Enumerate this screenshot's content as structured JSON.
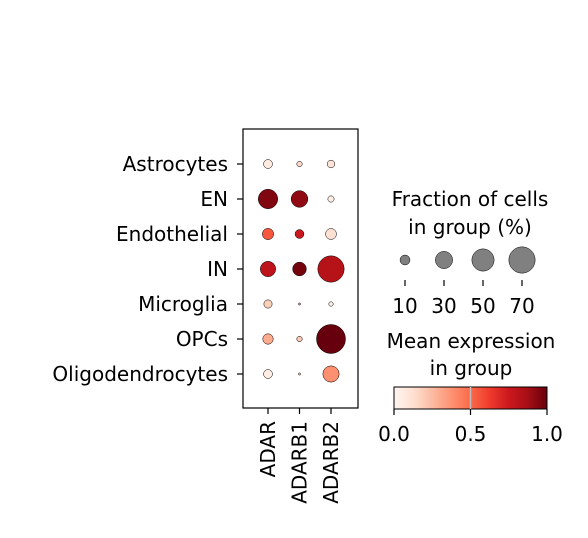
{
  "chart_data": {
    "type": "dotplot",
    "genes": [
      "ADAR",
      "ADARB1",
      "ADARB2"
    ],
    "groups": [
      "Astrocytes",
      "EN",
      "Endothelial",
      "IN",
      "Microglia",
      "OPCs",
      "Oligodendrocytes"
    ],
    "fraction_percent": [
      [
        8,
        3,
        6
      ],
      [
        38,
        28,
        4
      ],
      [
        13,
        8,
        12
      ],
      [
        24,
        19,
        70
      ],
      [
        7,
        0.5,
        2
      ],
      [
        11,
        3,
        85
      ],
      [
        8,
        0.5,
        27
      ]
    ],
    "mean_expression": [
      [
        0.06,
        0.15,
        0.1
      ],
      [
        0.95,
        0.92,
        0.05
      ],
      [
        0.55,
        0.75,
        0.12
      ],
      [
        0.8,
        0.97,
        0.82
      ],
      [
        0.18,
        0.3,
        0.05
      ],
      [
        0.3,
        0.2,
        1.0
      ],
      [
        0.05,
        0.2,
        0.38
      ]
    ],
    "size_legend": {
      "title_line1": "Fraction of cells",
      "title_line2": "in group (%)",
      "values": [
        10,
        30,
        50,
        70
      ]
    },
    "color_legend": {
      "title_line1": "Mean expression",
      "title_line2": "in group",
      "ticks": [
        0.0,
        0.5,
        1.0
      ],
      "tick_labels": [
        "0.0",
        "0.5",
        "1.0"
      ],
      "colormap": "Reds",
      "range": [
        0,
        1
      ]
    }
  }
}
